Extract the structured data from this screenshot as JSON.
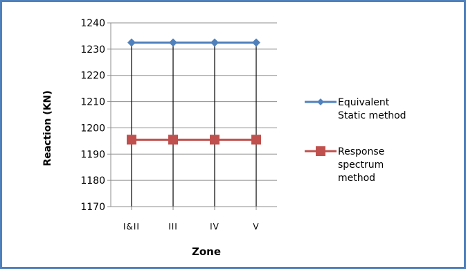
{
  "chart_data": {
    "type": "line",
    "title": "",
    "xlabel": "Zone",
    "ylabel": "Reaction (KN)",
    "categories": [
      "I&II",
      "III",
      "IV",
      "V"
    ],
    "ylim": [
      1170,
      1240
    ],
    "yticks": [
      "1240",
      "1230",
      "1220",
      "1210",
      "1200",
      "1190",
      "1180",
      "1170"
    ],
    "grid": "horizontal",
    "legend_position": "right",
    "series": [
      {
        "name": "Equivalent Static method",
        "legend_lines": [
          "Equivalent",
          "Static method"
        ],
        "values": [
          1232.5,
          1232.5,
          1232.5,
          1232.5
        ],
        "color": "#4f81bd",
        "marker": "diamond"
      },
      {
        "name": "Response spectrum method",
        "legend_lines": [
          "Response",
          "spectrum",
          "method"
        ],
        "values": [
          1195.5,
          1195.5,
          1195.5,
          1195.5
        ],
        "color": "#c0504d",
        "marker": "square"
      }
    ]
  }
}
